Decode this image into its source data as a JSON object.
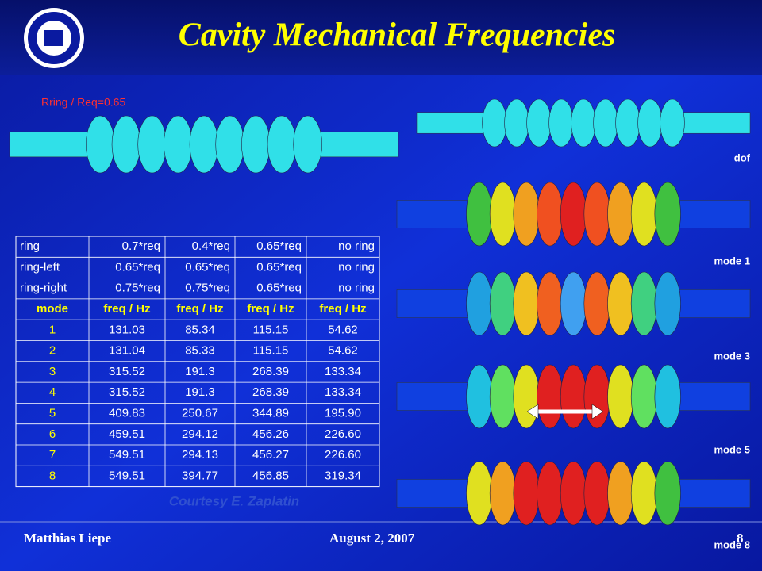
{
  "header": {
    "title": "Cavity Mechanical Frequencies"
  },
  "annotation": "Rring / Req=0.65",
  "table": {
    "rows": [
      [
        "ring",
        "0.7*req",
        "0.4*req",
        "0.65*req",
        "no ring"
      ],
      [
        "ring-left",
        "0.65*req",
        "0.65*req",
        "0.65*req",
        "no ring"
      ],
      [
        "ring-right",
        "0.75*req",
        "0.75*req",
        "0.65*req",
        "no ring"
      ],
      [
        "mode",
        "freq / Hz",
        "freq / Hz",
        "freq / Hz",
        "freq / Hz"
      ],
      [
        "1",
        "131.03",
        "85.34",
        "115.15",
        "54.62"
      ],
      [
        "2",
        "131.04",
        "85.33",
        "115.15",
        "54.62"
      ],
      [
        "3",
        "315.52",
        "191.3",
        "268.39",
        "133.34"
      ],
      [
        "4",
        "315.52",
        "191.3",
        "268.39",
        "133.34"
      ],
      [
        "5",
        "409.83",
        "250.67",
        "344.89",
        "195.90"
      ],
      [
        "6",
        "459.51",
        "294.12",
        "456.26",
        "226.60"
      ],
      [
        "7",
        "549.51",
        "294.13",
        "456.27",
        "226.60"
      ],
      [
        "8",
        "549.51",
        "394.77",
        "456.85",
        "319.34"
      ]
    ]
  },
  "credit": "Courtesy E. Zaplatin",
  "mode_labels": [
    "dof",
    "mode 1",
    "mode 3",
    "mode 5",
    "mode 8"
  ],
  "footer": {
    "author": "Matthias Liepe",
    "date": "August 2, 2007",
    "page": "8"
  }
}
